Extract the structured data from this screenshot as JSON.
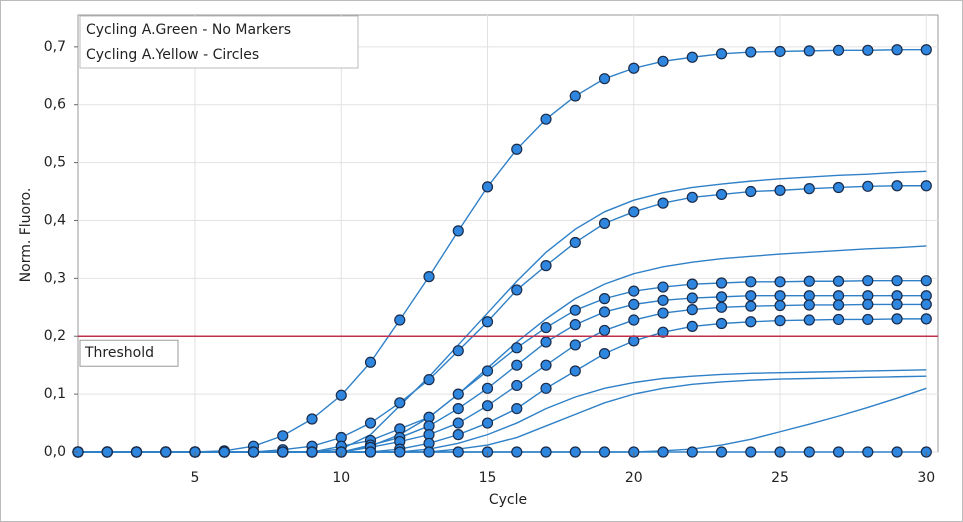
{
  "chart_data": {
    "type": "line",
    "x_label": "Cycle",
    "y_label": "Norm. Fluoro.",
    "x": [
      1,
      2,
      3,
      4,
      5,
      6,
      7,
      8,
      9,
      10,
      11,
      12,
      13,
      14,
      15,
      16,
      17,
      18,
      19,
      20,
      21,
      22,
      23,
      24,
      25,
      26,
      27,
      28,
      29,
      30
    ],
    "xlim": [
      1,
      30.4
    ],
    "ylim": [
      0,
      0.755
    ],
    "xticks": [
      5,
      10,
      15,
      20,
      25,
      30
    ],
    "yticks": [
      {
        "value": 0,
        "label": "0,0"
      },
      {
        "value": 0.1,
        "label": "0,1"
      },
      {
        "value": 0.2,
        "label": "0,2"
      },
      {
        "value": 0.3,
        "label": "0,3"
      },
      {
        "value": 0.4,
        "label": "0,4"
      },
      {
        "value": 0.5,
        "label": "0,5"
      },
      {
        "value": 0.6,
        "label": "0,6"
      },
      {
        "value": 0.7,
        "label": "0,7"
      }
    ],
    "grid": true,
    "legend": "top-left",
    "threshold": {
      "value": 0.2,
      "label": "Threshold",
      "color": "#c0304a"
    },
    "series": [
      {
        "name": "Cycling A.Green - No Markers",
        "color": "#2f80c7",
        "marker": "none",
        "curves": [
          [
            0,
            0,
            0,
            0,
            0,
            0,
            0,
            0,
            0,
            0.005,
            0.03,
            0.08,
            0.13,
            0.185,
            0.24,
            0.295,
            0.345,
            0.385,
            0.415,
            0.435,
            0.448,
            0.457,
            0.463,
            0.468,
            0.472,
            0.475,
            0.478,
            0.48,
            0.483,
            0.485
          ],
          [
            0,
            0,
            0,
            0,
            0,
            0,
            0,
            0,
            0,
            0,
            0.01,
            0.03,
            0.06,
            0.1,
            0.145,
            0.19,
            0.23,
            0.265,
            0.29,
            0.308,
            0.32,
            0.328,
            0.334,
            0.338,
            0.342,
            0.345,
            0.348,
            0.351,
            0.353,
            0.356
          ],
          [
            0,
            0,
            0,
            0,
            0,
            0,
            0,
            0,
            0,
            0,
            0,
            0,
            0.005,
            0.015,
            0.03,
            0.05,
            0.075,
            0.095,
            0.11,
            0.12,
            0.127,
            0.131,
            0.134,
            0.136,
            0.137,
            0.138,
            0.139,
            0.14,
            0.141,
            0.142
          ],
          [
            0,
            0,
            0,
            0,
            0,
            0,
            0,
            0,
            0,
            0,
            0,
            0,
            0,
            0.005,
            0.012,
            0.025,
            0.045,
            0.065,
            0.085,
            0.1,
            0.11,
            0.117,
            0.121,
            0.124,
            0.126,
            0.127,
            0.128,
            0.129,
            0.13,
            0.131
          ],
          [
            0,
            0,
            0,
            0,
            0,
            0,
            0,
            0,
            0,
            0,
            0,
            0,
            0,
            0,
            0,
            0,
            0,
            0,
            0,
            0,
            0.002,
            0.005,
            0.012,
            0.022,
            0.035,
            0.048,
            0.062,
            0.077,
            0.093,
            0.11
          ]
        ]
      },
      {
        "name": "Cycling A.Yellow - Circles",
        "color": "#2f80c7",
        "marker": "circle",
        "marker_fill": "#2e86de",
        "marker_edge": "#1b2b48",
        "curves": [
          [
            0,
            0,
            0,
            0,
            0,
            0.002,
            0.01,
            0.028,
            0.057,
            0.098,
            0.155,
            0.228,
            0.303,
            0.382,
            0.458,
            0.523,
            0.575,
            0.615,
            0.645,
            0.663,
            0.675,
            0.682,
            0.688,
            0.691,
            0.692,
            0.693,
            0.694,
            0.694,
            0.695,
            0.695
          ],
          [
            0,
            0,
            0,
            0,
            0,
            0,
            0,
            0.004,
            0.01,
            0.025,
            0.05,
            0.085,
            0.125,
            0.175,
            0.225,
            0.28,
            0.322,
            0.362,
            0.395,
            0.415,
            0.43,
            0.44,
            0.445,
            0.45,
            0.452,
            0.455,
            0.457,
            0.459,
            0.46,
            0.46
          ],
          [
            0,
            0,
            0,
            0,
            0,
            0,
            0,
            0,
            0,
            0.01,
            0.02,
            0.04,
            0.06,
            0.1,
            0.14,
            0.18,
            0.215,
            0.245,
            0.265,
            0.278,
            0.285,
            0.29,
            0.292,
            0.294,
            0.294,
            0.295,
            0.295,
            0.296,
            0.296,
            0.296
          ],
          [
            0,
            0,
            0,
            0,
            0,
            0,
            0,
            0,
            0,
            0,
            0.012,
            0.025,
            0.045,
            0.075,
            0.11,
            0.15,
            0.19,
            0.22,
            0.242,
            0.255,
            0.262,
            0.266,
            0.268,
            0.27,
            0.27,
            0.27,
            0.27,
            0.27,
            0.27,
            0.27
          ],
          [
            0,
            0,
            0,
            0,
            0,
            0,
            0,
            0,
            0,
            0,
            0.008,
            0.018,
            0.03,
            0.05,
            0.08,
            0.115,
            0.15,
            0.185,
            0.21,
            0.228,
            0.24,
            0.246,
            0.25,
            0.252,
            0.253,
            0.254,
            0.254,
            0.255,
            0.255,
            0.255
          ],
          [
            0,
            0,
            0,
            0,
            0,
            0,
            0,
            0,
            0,
            0,
            0,
            0.005,
            0.015,
            0.03,
            0.05,
            0.075,
            0.11,
            0.14,
            0.17,
            0.192,
            0.207,
            0.217,
            0.222,
            0.225,
            0.227,
            0.228,
            0.229,
            0.229,
            0.23,
            0.23
          ],
          [
            0,
            0,
            0,
            0,
            0,
            0,
            0,
            0,
            0,
            0,
            0,
            0,
            0,
            0,
            0,
            0,
            0,
            0,
            0,
            0,
            0,
            0,
            0,
            0,
            0,
            0,
            0,
            0,
            0,
            0
          ]
        ]
      }
    ]
  }
}
